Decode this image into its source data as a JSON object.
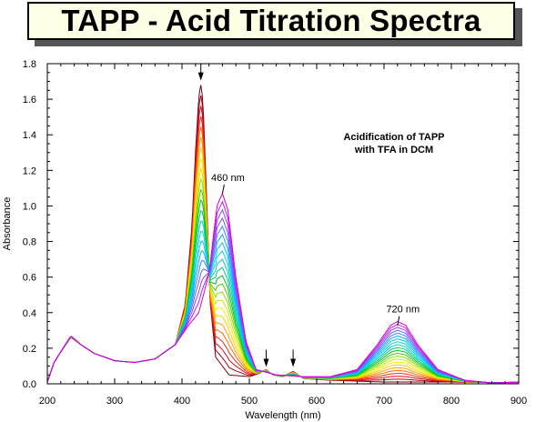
{
  "title": "TAPP - Acid Titration Spectra",
  "chart_data": {
    "type": "line",
    "xlabel": "Wavelength (nm)",
    "ylabel": "Absorbance",
    "xlim": [
      200,
      900
    ],
    "ylim": [
      0,
      1.8
    ],
    "xticks": [
      200,
      300,
      400,
      500,
      600,
      700,
      800,
      900
    ],
    "yticks": [
      0.0,
      0.2,
      0.4,
      0.6,
      0.8,
      1.0,
      1.2,
      1.4,
      1.6,
      1.8
    ],
    "ytick_labels": [
      "0.0",
      "0.2",
      "0.4",
      "0.6",
      "0.8",
      "1.0",
      "1.2",
      "1.4",
      "1.6",
      "1.8"
    ],
    "grid": false,
    "annotation": [
      "Acidification of TAPP",
      "with TFA in DCM"
    ],
    "labels": [
      {
        "text": "460 nm",
        "x": 460,
        "y": 1.12
      },
      {
        "text": "720 nm",
        "x": 720,
        "y": 0.38
      }
    ],
    "arrows": [
      {
        "x": 428,
        "y": 1.71
      },
      {
        "x": 525,
        "y": 0.1
      },
      {
        "x": 565,
        "y": 0.1
      }
    ],
    "series_count": 22,
    "series_colors": [
      "#7a0010",
      "#b00018",
      "#d8101a",
      "#f03010",
      "#ff6a00",
      "#ff9d00",
      "#ffcc00",
      "#f2ee00",
      "#c6e800",
      "#8cdc00",
      "#44cc00",
      "#00c020",
      "#00c880",
      "#00d2b0",
      "#00d4d8",
      "#00c4f0",
      "#10a8ff",
      "#3c84ff",
      "#6a5cff",
      "#9c40f8",
      "#c020e8",
      "#d800d0"
    ],
    "start_spectrum": [
      [
        200,
        0.01
      ],
      [
        210,
        0.12
      ],
      [
        220,
        0.18
      ],
      [
        235,
        0.26
      ],
      [
        250,
        0.22
      ],
      [
        270,
        0.17
      ],
      [
        300,
        0.13
      ],
      [
        330,
        0.12
      ],
      [
        360,
        0.14
      ],
      [
        390,
        0.22
      ],
      [
        405,
        0.45
      ],
      [
        415,
        0.9
      ],
      [
        420,
        1.3
      ],
      [
        425,
        1.62
      ],
      [
        428,
        1.68
      ],
      [
        431,
        1.6
      ],
      [
        436,
        1.1
      ],
      [
        442,
        0.45
      ],
      [
        450,
        0.15
      ],
      [
        470,
        0.05
      ],
      [
        500,
        0.04
      ],
      [
        515,
        0.06
      ],
      [
        525,
        0.08
      ],
      [
        535,
        0.05
      ],
      [
        550,
        0.04
      ],
      [
        565,
        0.07
      ],
      [
        580,
        0.03
      ],
      [
        620,
        0.02
      ],
      [
        700,
        0.01
      ],
      [
        800,
        0.01
      ],
      [
        900,
        0.005
      ]
    ],
    "end_spectrum": [
      [
        200,
        0.01
      ],
      [
        210,
        0.12
      ],
      [
        220,
        0.18
      ],
      [
        235,
        0.27
      ],
      [
        250,
        0.22
      ],
      [
        270,
        0.17
      ],
      [
        300,
        0.13
      ],
      [
        330,
        0.12
      ],
      [
        360,
        0.14
      ],
      [
        390,
        0.22
      ],
      [
        410,
        0.33
      ],
      [
        425,
        0.4
      ],
      [
        440,
        0.62
      ],
      [
        452,
        1.0
      ],
      [
        460,
        1.07
      ],
      [
        468,
        0.98
      ],
      [
        480,
        0.6
      ],
      [
        495,
        0.24
      ],
      [
        510,
        0.08
      ],
      [
        540,
        0.05
      ],
      [
        580,
        0.04
      ],
      [
        620,
        0.04
      ],
      [
        660,
        0.08
      ],
      [
        690,
        0.22
      ],
      [
        710,
        0.33
      ],
      [
        720,
        0.35
      ],
      [
        732,
        0.33
      ],
      [
        750,
        0.22
      ],
      [
        780,
        0.08
      ],
      [
        820,
        0.02
      ],
      [
        860,
        0.005
      ],
      [
        900,
        0.01
      ]
    ]
  }
}
